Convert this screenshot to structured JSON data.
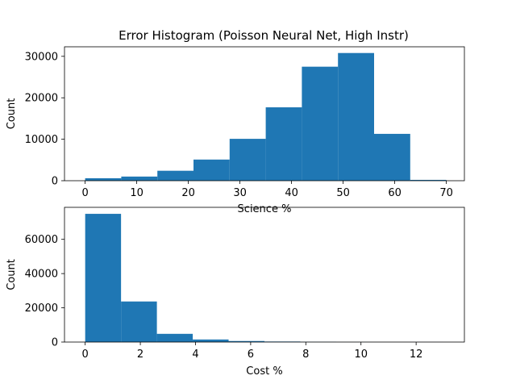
{
  "figure": {
    "title": "Error Histogram (Poisson Neural Net, High Instr)",
    "bar_color": "#1f77b4",
    "background": "#ffffff"
  },
  "chart_data": [
    {
      "type": "bar",
      "subtype": "histogram",
      "title": "Error Histogram (Poisson Neural Net, High Instr)",
      "xlabel": "Science %",
      "ylabel": "Count",
      "bin_edges": [
        0,
        7,
        14,
        21,
        28,
        35,
        42,
        49,
        56,
        63,
        70
      ],
      "values": [
        600,
        1000,
        2400,
        5100,
        10100,
        17700,
        27500,
        30800,
        11300,
        200
      ],
      "xlim": [
        -4,
        73.5
      ],
      "ylim": [
        0,
        32300
      ],
      "xticks": [
        0,
        10,
        20,
        30,
        40,
        50,
        60,
        70
      ],
      "yticks": [
        0,
        10000,
        20000,
        30000
      ],
      "grid": false,
      "legend": null
    },
    {
      "type": "bar",
      "subtype": "histogram",
      "title": "",
      "xlabel": "Cost %",
      "ylabel": "Count",
      "bin_edges": [
        0,
        1.3,
        2.6,
        3.9,
        5.2,
        6.5,
        7.8,
        9.1,
        10.4,
        11.7,
        13.0
      ],
      "values": [
        74900,
        23700,
        4800,
        1500,
        600,
        300,
        100,
        40,
        20,
        10
      ],
      "xlim": [
        -0.75,
        13.75
      ],
      "ylim": [
        0,
        78700
      ],
      "xticks": [
        0,
        2,
        4,
        6,
        8,
        10,
        12
      ],
      "yticks": [
        0,
        20000,
        40000,
        60000
      ],
      "grid": false,
      "legend": null
    }
  ]
}
